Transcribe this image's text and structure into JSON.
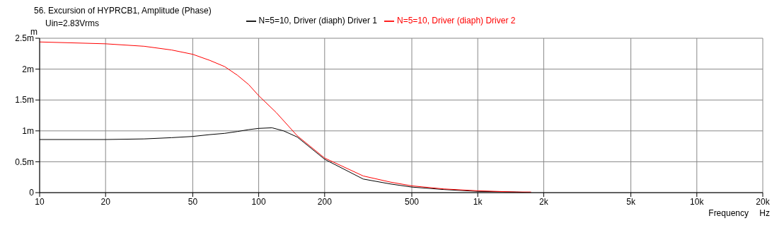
{
  "chart_data": {
    "type": "line",
    "title": "56. Excursion of HYPRCB1, Amplitude (Phase)",
    "subtitle": "Uin=2.83Vrms",
    "xlabel": "Frequency",
    "ylabel": "m",
    "annotations": [
      "Hz"
    ],
    "log": "x",
    "grid": true,
    "legend": "top",
    "marker": "none",
    "line_style": "solid",
    "xlim": [
      10,
      20000
    ],
    "xticks": [
      10,
      20,
      50,
      100,
      200,
      500,
      {
        "value": 1000,
        "label": "1k"
      },
      {
        "value": 2000,
        "label": "2k"
      },
      {
        "value": 5000,
        "label": "5k"
      },
      {
        "value": 10000,
        "label": "10k"
      },
      {
        "value": 20000,
        "label": "20k"
      }
    ],
    "ylim": [
      0,
      2.5
    ],
    "yticks": [
      0,
      {
        "value": 0.5,
        "label": "0.5m"
      },
      {
        "value": 1,
        "label": "1m"
      },
      {
        "value": 1.5,
        "label": "1.5m"
      },
      {
        "value": 2,
        "label": "2m"
      },
      {
        "value": 2.5,
        "label": "2.5m"
      }
    ],
    "series": [
      {
        "name": "N=5=10, Driver (diaph) Driver 1",
        "color": "#000000",
        "x": [
          10,
          20,
          30,
          40,
          50,
          60,
          70,
          80,
          90,
          100,
          115,
          130,
          150,
          200,
          300,
          400,
          500,
          700,
          1000,
          1500,
          1750
        ],
        "values": [
          0.86,
          0.86,
          0.87,
          0.89,
          0.91,
          0.94,
          0.96,
          0.99,
          1.02,
          1.04,
          1.05,
          1.0,
          0.9,
          0.54,
          0.22,
          0.14,
          0.09,
          0.05,
          0.02,
          0.01,
          0
        ]
      },
      {
        "name": "N=5=10, Driver (diaph) Driver 2",
        "color": "#ff0000",
        "x": [
          10,
          20,
          30,
          40,
          50,
          60,
          70,
          80,
          90,
          100,
          120,
          150,
          200,
          300,
          400,
          500,
          700,
          1000,
          1500,
          1750
        ],
        "values": [
          2.44,
          2.41,
          2.37,
          2.31,
          2.24,
          2.14,
          2.04,
          1.9,
          1.75,
          1.57,
          1.3,
          0.92,
          0.56,
          0.27,
          0.17,
          0.11,
          0.06,
          0.03,
          0.01,
          0.01
        ]
      }
    ]
  }
}
